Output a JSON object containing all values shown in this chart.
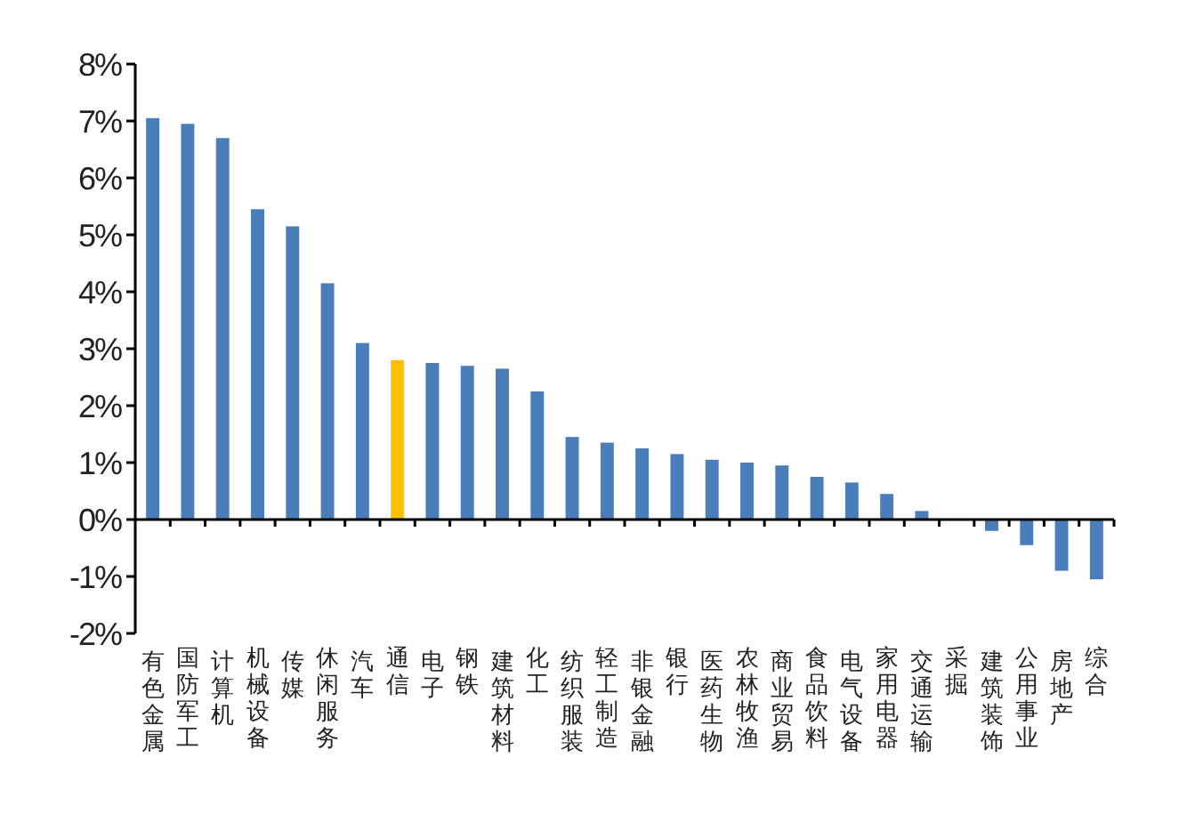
{
  "chart_data": {
    "type": "bar",
    "categories": [
      "有色金属",
      "国防军工",
      "计算机",
      "机械设备",
      "传媒",
      "休闲服务",
      "汽车",
      "通信",
      "电子",
      "钢铁",
      "建筑材料",
      "化工",
      "纺织服装",
      "轻工制造",
      "非银金融",
      "银行",
      "医药生物",
      "农林牧渔",
      "商业贸易",
      "食品饮料",
      "电气设备",
      "家用电器",
      "交通运输",
      "采掘",
      "建筑装饰",
      "公用事业",
      "房地产",
      "综合"
    ],
    "values": [
      7.05,
      6.95,
      6.7,
      5.45,
      5.15,
      4.15,
      3.1,
      2.8,
      2.75,
      2.7,
      2.65,
      2.25,
      1.45,
      1.35,
      1.25,
      1.15,
      1.05,
      1.0,
      0.95,
      0.75,
      0.65,
      0.45,
      0.15,
      0,
      -0.2,
      -0.45,
      -0.9,
      -1.05
    ],
    "colors": [
      "#4a7ebb",
      "#4a7ebb",
      "#4a7ebb",
      "#4a7ebb",
      "#4a7ebb",
      "#4a7ebb",
      "#4a7ebb",
      "#ffc000",
      "#4a7ebb",
      "#4a7ebb",
      "#4a7ebb",
      "#4a7ebb",
      "#4a7ebb",
      "#4a7ebb",
      "#4a7ebb",
      "#4a7ebb",
      "#4a7ebb",
      "#4a7ebb",
      "#4a7ebb",
      "#4a7ebb",
      "#4a7ebb",
      "#4a7ebb",
      "#4a7ebb",
      "#4a7ebb",
      "#4a7ebb",
      "#4a7ebb",
      "#4a7ebb",
      "#4a7ebb"
    ],
    "ylim": [
      -2,
      8
    ],
    "yticks": [
      {
        "value": -2,
        "label": "-2%"
      },
      {
        "value": -1,
        "label": "-1%"
      },
      {
        "value": 0,
        "label": "0%"
      },
      {
        "value": 1,
        "label": "1%"
      },
      {
        "value": 2,
        "label": "2%"
      },
      {
        "value": 3,
        "label": "3%"
      },
      {
        "value": 4,
        "label": "4%"
      },
      {
        "value": 5,
        "label": "5%"
      },
      {
        "value": 6,
        "label": "6%"
      },
      {
        "value": 7,
        "label": "7%"
      },
      {
        "value": 8,
        "label": "8%"
      }
    ]
  }
}
